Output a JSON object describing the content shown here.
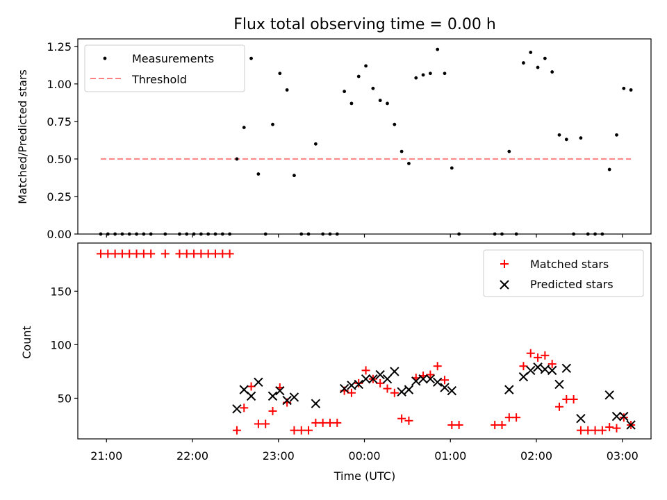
{
  "chart_data": [
    {
      "type": "scatter",
      "title": "Flux total observing time = 0.00 h",
      "ylabel": "Matched/Predicted stars",
      "xlabel": "",
      "ylim": [
        0,
        1.3
      ],
      "yticks": [
        "0.00",
        "0.25",
        "0.50",
        "0.75",
        "1.00",
        "1.25"
      ],
      "grid": false,
      "legend_position": "top-left",
      "series": [
        {
          "name": "Measurements",
          "points": [
            [
              "20:56",
              0.0
            ],
            [
              "21:01",
              0.0
            ],
            [
              "21:06",
              0.0
            ],
            [
              "21:11",
              0.0
            ],
            [
              "21:16",
              0.0
            ],
            [
              "21:21",
              0.0
            ],
            [
              "21:26",
              0.0
            ],
            [
              "21:31",
              0.0
            ],
            [
              "21:41",
              0.0
            ],
            [
              "21:51",
              0.0
            ],
            [
              "21:56",
              0.0
            ],
            [
              "22:01",
              0.0
            ],
            [
              "22:06",
              0.0
            ],
            [
              "22:11",
              0.0
            ],
            [
              "22:16",
              0.0
            ],
            [
              "22:21",
              0.0
            ],
            [
              "22:26",
              0.0
            ],
            [
              "22:31",
              0.5
            ],
            [
              "22:36",
              0.71
            ],
            [
              "22:41",
              1.17
            ],
            [
              "22:46",
              0.4
            ],
            [
              "22:51",
              0.0
            ],
            [
              "22:56",
              0.73
            ],
            [
              "23:01",
              1.07
            ],
            [
              "23:06",
              0.96
            ],
            [
              "23:11",
              0.39
            ],
            [
              "23:16",
              0.0
            ],
            [
              "23:21",
              0.0
            ],
            [
              "23:26",
              0.6
            ],
            [
              "23:31",
              0.0
            ],
            [
              "23:36",
              0.0
            ],
            [
              "23:41",
              0.0
            ],
            [
              "23:46",
              0.95
            ],
            [
              "23:51",
              0.87
            ],
            [
              "23:56",
              1.05
            ],
            [
              "00:01",
              1.12
            ],
            [
              "00:06",
              0.97
            ],
            [
              "00:11",
              0.89
            ],
            [
              "00:16",
              0.87
            ],
            [
              "00:21",
              0.73
            ],
            [
              "00:26",
              0.55
            ],
            [
              "00:31",
              0.47
            ],
            [
              "00:36",
              1.04
            ],
            [
              "00:41",
              1.06
            ],
            [
              "00:46",
              1.07
            ],
            [
              "00:51",
              1.23
            ],
            [
              "00:56",
              1.07
            ],
            [
              "01:01",
              0.44
            ],
            [
              "01:06",
              0.0
            ],
            [
              "01:31",
              0.0
            ],
            [
              "01:36",
              0.0
            ],
            [
              "01:41",
              0.55
            ],
            [
              "01:46",
              0.0
            ],
            [
              "01:51",
              1.14
            ],
            [
              "01:56",
              1.21
            ],
            [
              "02:01",
              1.11
            ],
            [
              "02:06",
              1.17
            ],
            [
              "02:11",
              1.08
            ],
            [
              "02:16",
              0.66
            ],
            [
              "02:21",
              0.63
            ],
            [
              "02:26",
              0.0
            ],
            [
              "02:31",
              0.64
            ],
            [
              "02:36",
              0.0
            ],
            [
              "02:41",
              0.0
            ],
            [
              "02:46",
              0.0
            ],
            [
              "02:51",
              0.43
            ],
            [
              "02:56",
              0.66
            ],
            [
              "03:01",
              0.97
            ],
            [
              "03:06",
              0.96
            ]
          ]
        },
        {
          "name": "Threshold",
          "x": [
            "20:56",
            "03:06"
          ],
          "y": [
            0.5,
            0.5
          ]
        }
      ]
    },
    {
      "type": "scatter",
      "title": "",
      "xlabel": "Time (UTC)",
      "ylabel": "Count",
      "ylim": [
        12,
        195
      ],
      "yticks": [
        "50",
        "100",
        "150"
      ],
      "xticks": [
        "21:00",
        "22:00",
        "23:00",
        "00:00",
        "01:00",
        "02:00",
        "03:00"
      ],
      "grid": false,
      "legend_position": "top-right",
      "series": [
        {
          "name": "Matched stars",
          "points": [
            [
              "20:56",
              185
            ],
            [
              "21:01",
              185
            ],
            [
              "21:06",
              185
            ],
            [
              "21:11",
              185
            ],
            [
              "21:16",
              185
            ],
            [
              "21:21",
              185
            ],
            [
              "21:26",
              185
            ],
            [
              "21:31",
              185
            ],
            [
              "21:41",
              185
            ],
            [
              "21:51",
              185
            ],
            [
              "21:56",
              185
            ],
            [
              "22:01",
              185
            ],
            [
              "22:06",
              185
            ],
            [
              "22:11",
              185
            ],
            [
              "22:16",
              185
            ],
            [
              "22:21",
              185
            ],
            [
              "22:26",
              185
            ],
            [
              "22:31",
              20
            ],
            [
              "22:36",
              41
            ],
            [
              "22:41",
              61
            ],
            [
              "22:46",
              26
            ],
            [
              "22:51",
              26
            ],
            [
              "22:56",
              38
            ],
            [
              "23:01",
              60
            ],
            [
              "23:06",
              46
            ],
            [
              "23:11",
              20
            ],
            [
              "23:16",
              20
            ],
            [
              "23:21",
              20
            ],
            [
              "23:26",
              27
            ],
            [
              "23:31",
              27
            ],
            [
              "23:36",
              27
            ],
            [
              "23:41",
              27
            ],
            [
              "23:46",
              57
            ],
            [
              "23:51",
              55
            ],
            [
              "23:56",
              64
            ],
            [
              "00:01",
              76
            ],
            [
              "00:06",
              68
            ],
            [
              "00:11",
              64
            ],
            [
              "00:16",
              59
            ],
            [
              "00:21",
              55
            ],
            [
              "00:26",
              31
            ],
            [
              "00:31",
              29
            ],
            [
              "00:36",
              69
            ],
            [
              "00:41",
              71
            ],
            [
              "00:46",
              72
            ],
            [
              "00:51",
              80
            ],
            [
              "00:56",
              67
            ],
            [
              "01:01",
              25
            ],
            [
              "01:06",
              25
            ],
            [
              "01:31",
              25
            ],
            [
              "01:36",
              25
            ],
            [
              "01:41",
              32
            ],
            [
              "01:46",
              32
            ],
            [
              "01:51",
              80
            ],
            [
              "01:56",
              92
            ],
            [
              "02:01",
              88
            ],
            [
              "02:06",
              90
            ],
            [
              "02:11",
              82
            ],
            [
              "02:16",
              42
            ],
            [
              "02:21",
              49
            ],
            [
              "02:26",
              49
            ],
            [
              "02:31",
              20
            ],
            [
              "02:36",
              20
            ],
            [
              "02:41",
              20
            ],
            [
              "02:46",
              20
            ],
            [
              "02:51",
              23
            ],
            [
              "02:56",
              22
            ],
            [
              "03:01",
              32
            ],
            [
              "03:06",
              25
            ]
          ]
        },
        {
          "name": "Predicted stars",
          "points": [
            [
              "22:31",
              40
            ],
            [
              "22:36",
              58
            ],
            [
              "22:41",
              52
            ],
            [
              "22:46",
              65
            ],
            [
              "22:56",
              52
            ],
            [
              "23:01",
              57
            ],
            [
              "23:06",
              48
            ],
            [
              "23:11",
              51
            ],
            [
              "23:26",
              45
            ],
            [
              "23:46",
              59
            ],
            [
              "23:51",
              62
            ],
            [
              "23:56",
              63
            ],
            [
              "00:01",
              68
            ],
            [
              "00:06",
              68
            ],
            [
              "00:11",
              72
            ],
            [
              "00:16",
              68
            ],
            [
              "00:21",
              75
            ],
            [
              "00:26",
              56
            ],
            [
              "00:31",
              58
            ],
            [
              "00:36",
              66
            ],
            [
              "00:41",
              68
            ],
            [
              "00:46",
              68
            ],
            [
              "00:51",
              65
            ],
            [
              "00:56",
              60
            ],
            [
              "01:01",
              57
            ],
            [
              "01:41",
              58
            ],
            [
              "01:51",
              70
            ],
            [
              "01:56",
              76
            ],
            [
              "02:01",
              79
            ],
            [
              "02:06",
              77
            ],
            [
              "02:11",
              76
            ],
            [
              "02:16",
              63
            ],
            [
              "02:21",
              78
            ],
            [
              "02:31",
              31
            ],
            [
              "02:51",
              53
            ],
            [
              "02:56",
              33
            ],
            [
              "03:01",
              33
            ],
            [
              "03:06",
              25
            ]
          ]
        }
      ]
    }
  ],
  "colors": {
    "measurement": "#000000",
    "threshold": "#ff8080",
    "matched": "#ff0000",
    "predicted": "#000000"
  }
}
